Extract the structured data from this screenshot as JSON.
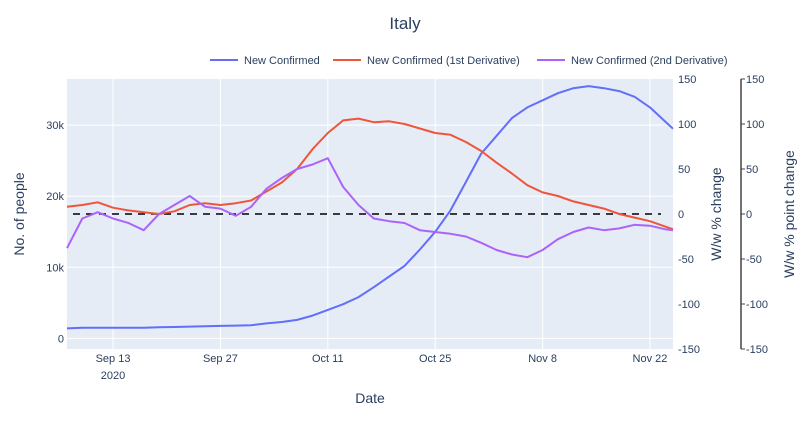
{
  "chart_data": {
    "type": "line",
    "title": "Italy",
    "xlabel": "Date",
    "ylabel": "No. of people",
    "y2label": "W/w % change",
    "y3label": "W/w % point change",
    "x_ticks": [
      {
        "date": "2020-09-13",
        "label": "Sep 13",
        "sublabel": "2020"
      },
      {
        "date": "2020-09-27",
        "label": "Sep 27",
        "sublabel": ""
      },
      {
        "date": "2020-10-11",
        "label": "Oct 11",
        "sublabel": ""
      },
      {
        "date": "2020-10-25",
        "label": "Oct 25",
        "sublabel": ""
      },
      {
        "date": "2020-11-08",
        "label": "Nov 8",
        "sublabel": ""
      },
      {
        "date": "2020-11-22",
        "label": "Nov 22",
        "sublabel": ""
      }
    ],
    "xlim": [
      "2020-09-07",
      "2020-11-25"
    ],
    "ylim": [
      -1500,
      36500
    ],
    "y_ticks": [
      0,
      10000,
      20000,
      30000
    ],
    "y_tick_labels": [
      "0",
      "10k",
      "20k",
      "30k"
    ],
    "y2lim": [
      -150,
      150
    ],
    "y2_ticks": [
      150,
      100,
      50,
      0,
      -50,
      -100,
      -150
    ],
    "y3lim": [
      -150,
      150
    ],
    "y3_ticks": [
      150,
      100,
      50,
      0,
      -50,
      -100,
      -150
    ],
    "legend_position": "top-right",
    "reference_line": {
      "axis": "y2",
      "value": 0,
      "style": "dashed"
    },
    "series": [
      {
        "name": "New Confirmed",
        "axis": "y",
        "color": "#636efa",
        "x": [
          "2020-09-07",
          "2020-09-09",
          "2020-09-11",
          "2020-09-13",
          "2020-09-15",
          "2020-09-17",
          "2020-09-19",
          "2020-09-21",
          "2020-09-23",
          "2020-09-25",
          "2020-09-27",
          "2020-09-29",
          "2020-10-01",
          "2020-10-03",
          "2020-10-05",
          "2020-10-07",
          "2020-10-09",
          "2020-10-11",
          "2020-10-13",
          "2020-10-15",
          "2020-10-17",
          "2020-10-19",
          "2020-10-21",
          "2020-10-23",
          "2020-10-25",
          "2020-10-27",
          "2020-10-29",
          "2020-10-31",
          "2020-11-02",
          "2020-11-04",
          "2020-11-06",
          "2020-11-08",
          "2020-11-10",
          "2020-11-12",
          "2020-11-14",
          "2020-11-16",
          "2020-11-18",
          "2020-11-20",
          "2020-11-22",
          "2020-11-24",
          "2020-11-25"
        ],
        "values": [
          1400,
          1500,
          1500,
          1500,
          1500,
          1500,
          1550,
          1600,
          1650,
          1700,
          1750,
          1800,
          1850,
          2100,
          2300,
          2600,
          3200,
          4000,
          4800,
          5800,
          7200,
          8700,
          10200,
          12500,
          15000,
          18000,
          22000,
          26000,
          28500,
          31000,
          32500,
          33500,
          34500,
          35200,
          35500,
          35200,
          34800,
          34000,
          32500,
          30500,
          29500
        ]
      },
      {
        "name": "New Confirmed (1st Derivative)",
        "axis": "y2",
        "color": "#ef553b",
        "x": [
          "2020-09-07",
          "2020-09-09",
          "2020-09-11",
          "2020-09-13",
          "2020-09-15",
          "2020-09-17",
          "2020-09-19",
          "2020-09-21",
          "2020-09-23",
          "2020-09-25",
          "2020-09-27",
          "2020-09-29",
          "2020-10-01",
          "2020-10-03",
          "2020-10-05",
          "2020-10-07",
          "2020-10-09",
          "2020-10-11",
          "2020-10-13",
          "2020-10-15",
          "2020-10-17",
          "2020-10-19",
          "2020-10-21",
          "2020-10-23",
          "2020-10-25",
          "2020-10-27",
          "2020-10-29",
          "2020-10-31",
          "2020-11-02",
          "2020-11-04",
          "2020-11-06",
          "2020-11-08",
          "2020-11-10",
          "2020-11-12",
          "2020-11-14",
          "2020-11-16",
          "2020-11-18",
          "2020-11-20",
          "2020-11-22",
          "2020-11-24",
          "2020-11-25"
        ],
        "values": [
          8,
          10,
          13,
          7,
          4,
          2,
          0,
          3,
          10,
          12,
          10,
          12,
          15,
          25,
          35,
          50,
          72,
          90,
          104,
          106,
          102,
          103,
          100,
          95,
          90,
          88,
          80,
          70,
          57,
          45,
          32,
          24,
          20,
          14,
          10,
          6,
          0,
          -4,
          -8,
          -14,
          -17
        ]
      },
      {
        "name": "New Confirmed (2nd Derivative)",
        "axis": "y3",
        "color": "#ab63fa",
        "x": [
          "2020-09-07",
          "2020-09-09",
          "2020-09-11",
          "2020-09-13",
          "2020-09-15",
          "2020-09-17",
          "2020-09-19",
          "2020-09-21",
          "2020-09-23",
          "2020-09-25",
          "2020-09-27",
          "2020-09-29",
          "2020-10-01",
          "2020-10-03",
          "2020-10-05",
          "2020-10-07",
          "2020-10-09",
          "2020-10-11",
          "2020-10-13",
          "2020-10-15",
          "2020-10-17",
          "2020-10-19",
          "2020-10-21",
          "2020-10-23",
          "2020-10-25",
          "2020-10-27",
          "2020-10-29",
          "2020-10-31",
          "2020-11-02",
          "2020-11-04",
          "2020-11-06",
          "2020-11-08",
          "2020-11-10",
          "2020-11-12",
          "2020-11-14",
          "2020-11-16",
          "2020-11-18",
          "2020-11-20",
          "2020-11-22",
          "2020-11-24",
          "2020-11-25"
        ],
        "values": [
          -38,
          -5,
          2,
          -5,
          -10,
          -18,
          0,
          10,
          20,
          8,
          6,
          -2,
          8,
          28,
          40,
          50,
          55,
          62,
          30,
          10,
          -5,
          -8,
          -10,
          -18,
          -20,
          -22,
          -25,
          -32,
          -40,
          -45,
          -48,
          -40,
          -28,
          -20,
          -15,
          -18,
          -16,
          -12,
          -13,
          -17,
          -18
        ]
      }
    ]
  }
}
